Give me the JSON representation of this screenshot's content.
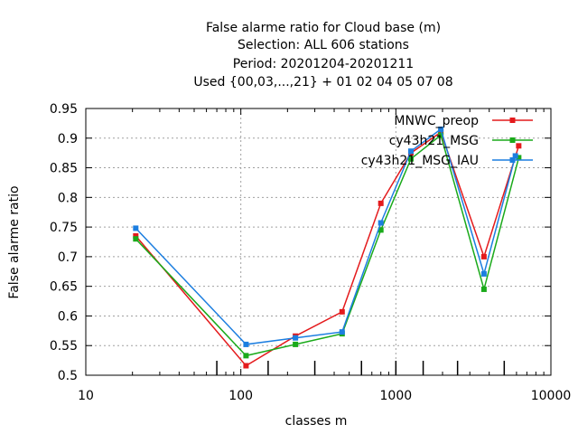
{
  "chart_data": {
    "type": "line",
    "title_lines": [
      "False alarme ratio  for Cloud base (m)",
      "Selection: ALL    606 stations",
      "Period: 20201204-20201211",
      "Used {00,03,...,21} + 01 02 04 05 07 08"
    ],
    "xlabel": "classes m",
    "ylabel": "False alarme ratio",
    "x_scale": "log",
    "xlim": [
      10,
      10000
    ],
    "ylim": [
      0.5,
      0.95
    ],
    "x_ticks": [
      10,
      100,
      1000,
      10000
    ],
    "x_tick_labels": [
      "10",
      "100",
      "1000",
      "10000"
    ],
    "y_ticks": [
      0.5,
      0.55,
      0.6,
      0.65,
      0.7,
      0.75,
      0.8,
      0.85,
      0.9,
      0.95
    ],
    "y_tick_labels": [
      "0.5",
      "0.55",
      "0.6",
      "0.65",
      "0.7",
      "0.75",
      "0.8",
      "0.85",
      "0.9",
      "0.95"
    ],
    "class_boundaries": [
      70,
      150,
      300,
      600,
      1000,
      1500,
      2500,
      5000
    ],
    "grid": true,
    "legend_position": "top-right",
    "series": [
      {
        "name": "MNWC_preop",
        "color": "#e41a1c",
        "x": [
          21,
          108,
          225,
          450,
          800,
          1250,
          1950,
          3700,
          6200
        ],
        "y": [
          0.735,
          0.516,
          0.566,
          0.607,
          0.79,
          0.875,
          0.91,
          0.7,
          0.887
        ]
      },
      {
        "name": "cy43h21_MSG",
        "color": "#1aaa1a",
        "x": [
          21,
          108,
          225,
          450,
          800,
          1250,
          1950,
          3700,
          6200
        ],
        "y": [
          0.73,
          0.533,
          0.552,
          0.57,
          0.745,
          0.865,
          0.905,
          0.645,
          0.867
        ]
      },
      {
        "name": "cy43h21_MSG_IAU",
        "color": "#1c7ee0",
        "x": [
          21,
          108,
          225,
          450,
          800,
          1250,
          1950,
          3700,
          5900
        ],
        "y": [
          0.748,
          0.552,
          0.563,
          0.573,
          0.757,
          0.878,
          0.915,
          0.671,
          0.87
        ]
      }
    ]
  }
}
